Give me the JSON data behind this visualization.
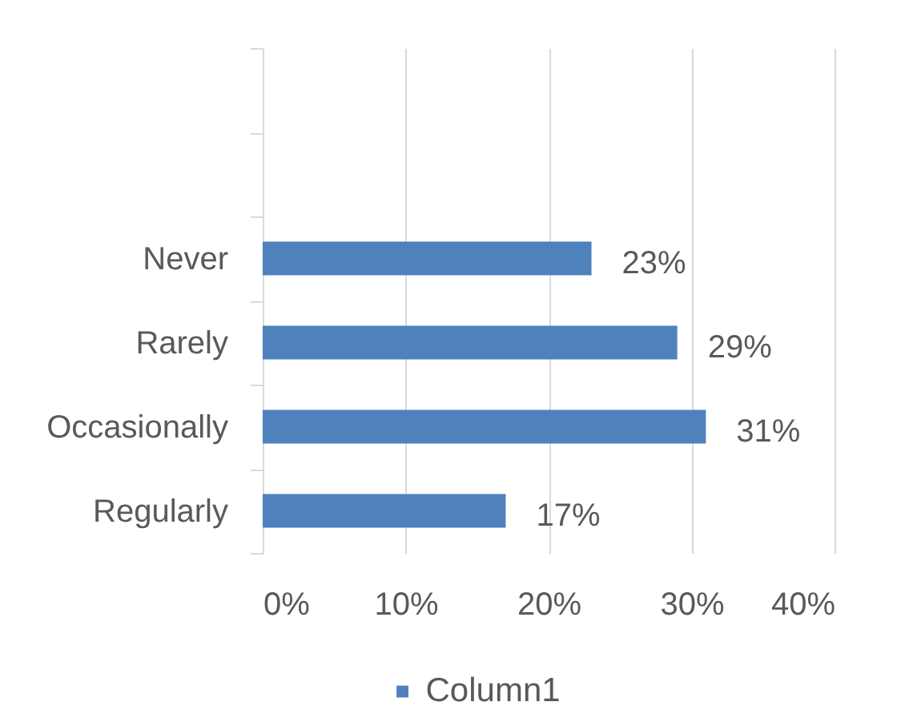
{
  "chart_data": {
    "type": "bar",
    "orientation": "horizontal",
    "categories": [
      null,
      null,
      "Never",
      "Rarely",
      "Occasionally",
      "Regularly"
    ],
    "series": [
      {
        "name": "Column1",
        "color": "#4f81bd",
        "values": [
          null,
          null,
          23,
          29,
          31,
          17
        ],
        "value_labels": [
          null,
          null,
          "23%",
          "29%",
          "31%",
          "17%"
        ]
      }
    ],
    "xlim": [
      0,
      40
    ],
    "xticks": [
      {
        "value": 0,
        "label": "0%"
      },
      {
        "value": 10,
        "label": "10%"
      },
      {
        "value": 20,
        "label": "20%"
      },
      {
        "value": 30,
        "label": "30%"
      },
      {
        "value": 40,
        "label": "40%"
      }
    ],
    "grid": "x",
    "legend": "bottom"
  }
}
